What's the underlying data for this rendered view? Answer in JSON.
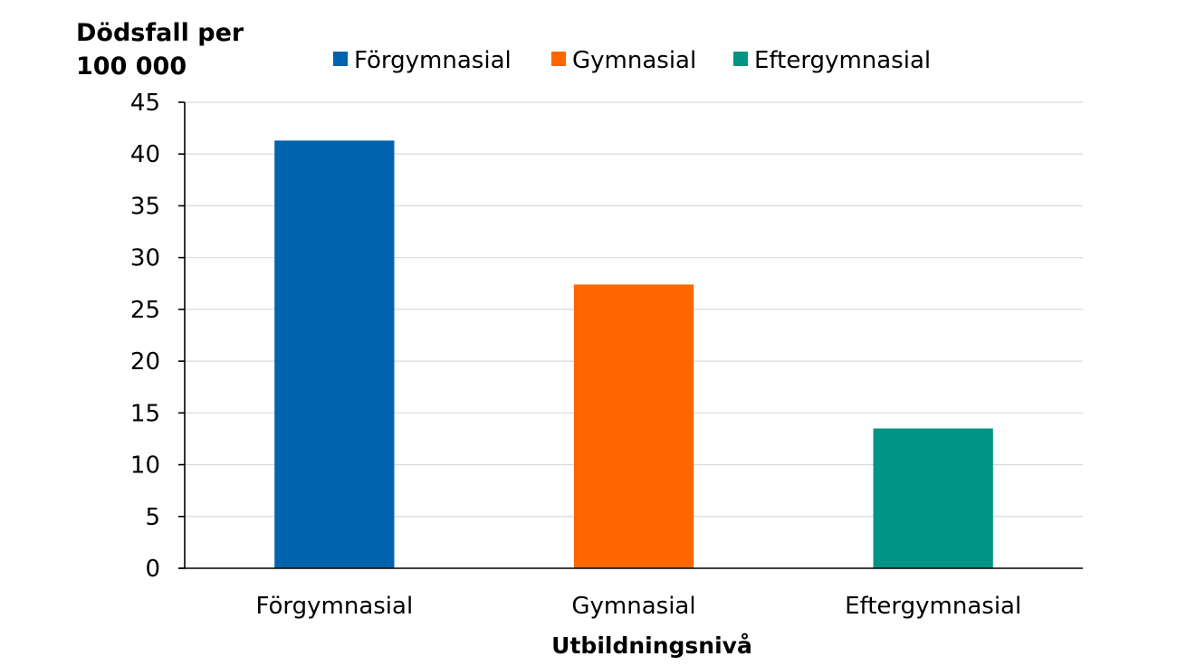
{
  "chart_data": {
    "type": "bar",
    "title": "",
    "ylabel_lines": [
      "Dödsfall per",
      "100 000"
    ],
    "xlabel": "Utbildningsnivå",
    "categories": [
      "Förgymnasial",
      "Gymnasial",
      "Eftergymnasial"
    ],
    "values": [
      41.3,
      27.4,
      13.5
    ],
    "colors": [
      "#0063ad",
      "#ff6600",
      "#009485"
    ],
    "ylim": [
      0,
      45
    ],
    "yticks": [
      0,
      5,
      10,
      15,
      20,
      25,
      30,
      35,
      40,
      45
    ],
    "grid": true,
    "legend": {
      "placement": "top",
      "entries": [
        "Förgymnasial",
        "Gymnasial",
        "Eftergymnasial"
      ]
    }
  }
}
